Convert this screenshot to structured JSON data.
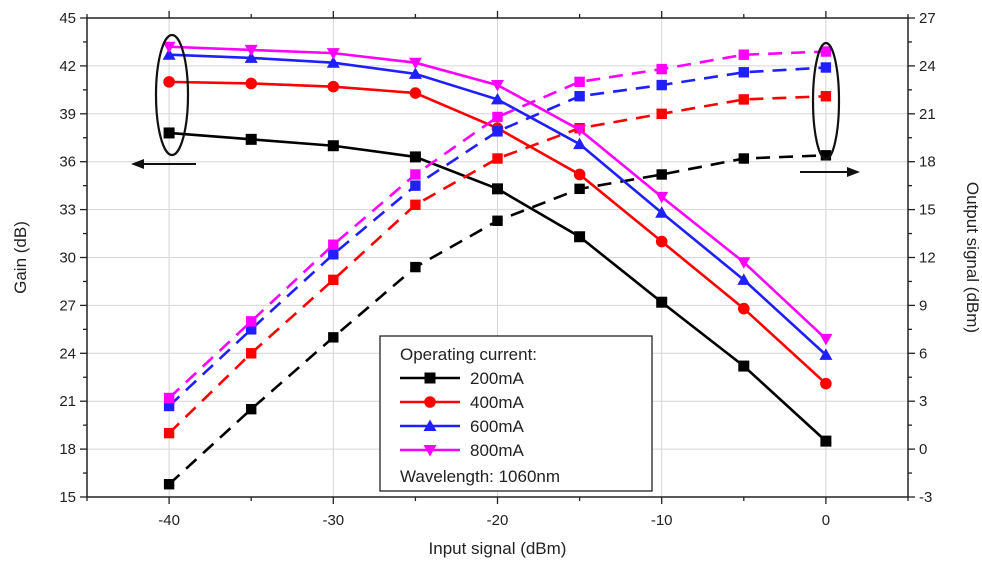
{
  "chart_data": {
    "type": "line",
    "xlabel": "Input signal (dBm)",
    "ylabel": "Gain (dB)",
    "y2label": "Output signal (dBm)",
    "xlim": [
      -45,
      5
    ],
    "ylim": [
      15,
      45
    ],
    "y2lim": [
      -3,
      27
    ],
    "x_ticks": [
      -40,
      -30,
      -20,
      -10,
      0
    ],
    "x_tick_labels": [
      "-40",
      "-30",
      "-20",
      "-10",
      "0"
    ],
    "y_ticks": [
      15,
      18,
      21,
      24,
      27,
      30,
      33,
      36,
      39,
      42,
      45
    ],
    "y_tick_labels": [
      "15",
      "18",
      "21",
      "24",
      "27",
      "30",
      "33",
      "36",
      "39",
      "42",
      "45"
    ],
    "y2_ticks": [
      -3,
      0,
      3,
      6,
      9,
      12,
      15,
      18,
      21,
      24,
      27
    ],
    "y2_tick_labels": [
      "-3",
      "0",
      "3",
      "6",
      "9",
      "12",
      "15",
      "18",
      "21",
      "24",
      "27"
    ],
    "grid": true,
    "legend": {
      "position": "bottom-right",
      "header": "Operating current:",
      "footer": "Wavelength: 1060nm"
    },
    "x": [
      -40,
      -35,
      -30,
      -25,
      -20,
      -15,
      -10,
      -5,
      0
    ],
    "series": [
      {
        "name": "200mA",
        "color": "#000000",
        "marker": "square",
        "gain": [
          37.8,
          37.4,
          37.0,
          36.3,
          34.3,
          31.3,
          27.2,
          23.2,
          18.5
        ],
        "output": [
          -2.2,
          2.5,
          7.0,
          11.4,
          14.3,
          16.3,
          17.2,
          18.2,
          18.4
        ]
      },
      {
        "name": "400mA",
        "color": "#ff0000",
        "marker": "circle",
        "gain": [
          41.0,
          40.9,
          40.7,
          40.3,
          38.1,
          35.2,
          31.0,
          26.8,
          22.1
        ],
        "output": [
          1.0,
          6.0,
          10.6,
          15.3,
          18.2,
          20.1,
          21.0,
          21.9,
          22.1
        ]
      },
      {
        "name": "600mA",
        "color": "#1f1fff",
        "marker": "triangle-up",
        "gain": [
          42.7,
          42.5,
          42.2,
          41.5,
          39.9,
          37.1,
          32.8,
          28.6,
          23.9
        ],
        "output": [
          2.7,
          7.5,
          12.2,
          16.5,
          19.9,
          22.1,
          22.8,
          23.6,
          23.9
        ]
      },
      {
        "name": "800mA",
        "color": "#ff00ff",
        "marker": "triangle-down",
        "gain": [
          43.2,
          43.0,
          42.8,
          42.2,
          40.8,
          38.0,
          33.8,
          29.7,
          24.9
        ],
        "output": [
          3.2,
          8.0,
          12.8,
          17.2,
          20.8,
          23.0,
          23.8,
          24.7,
          24.9
        ]
      }
    ]
  }
}
